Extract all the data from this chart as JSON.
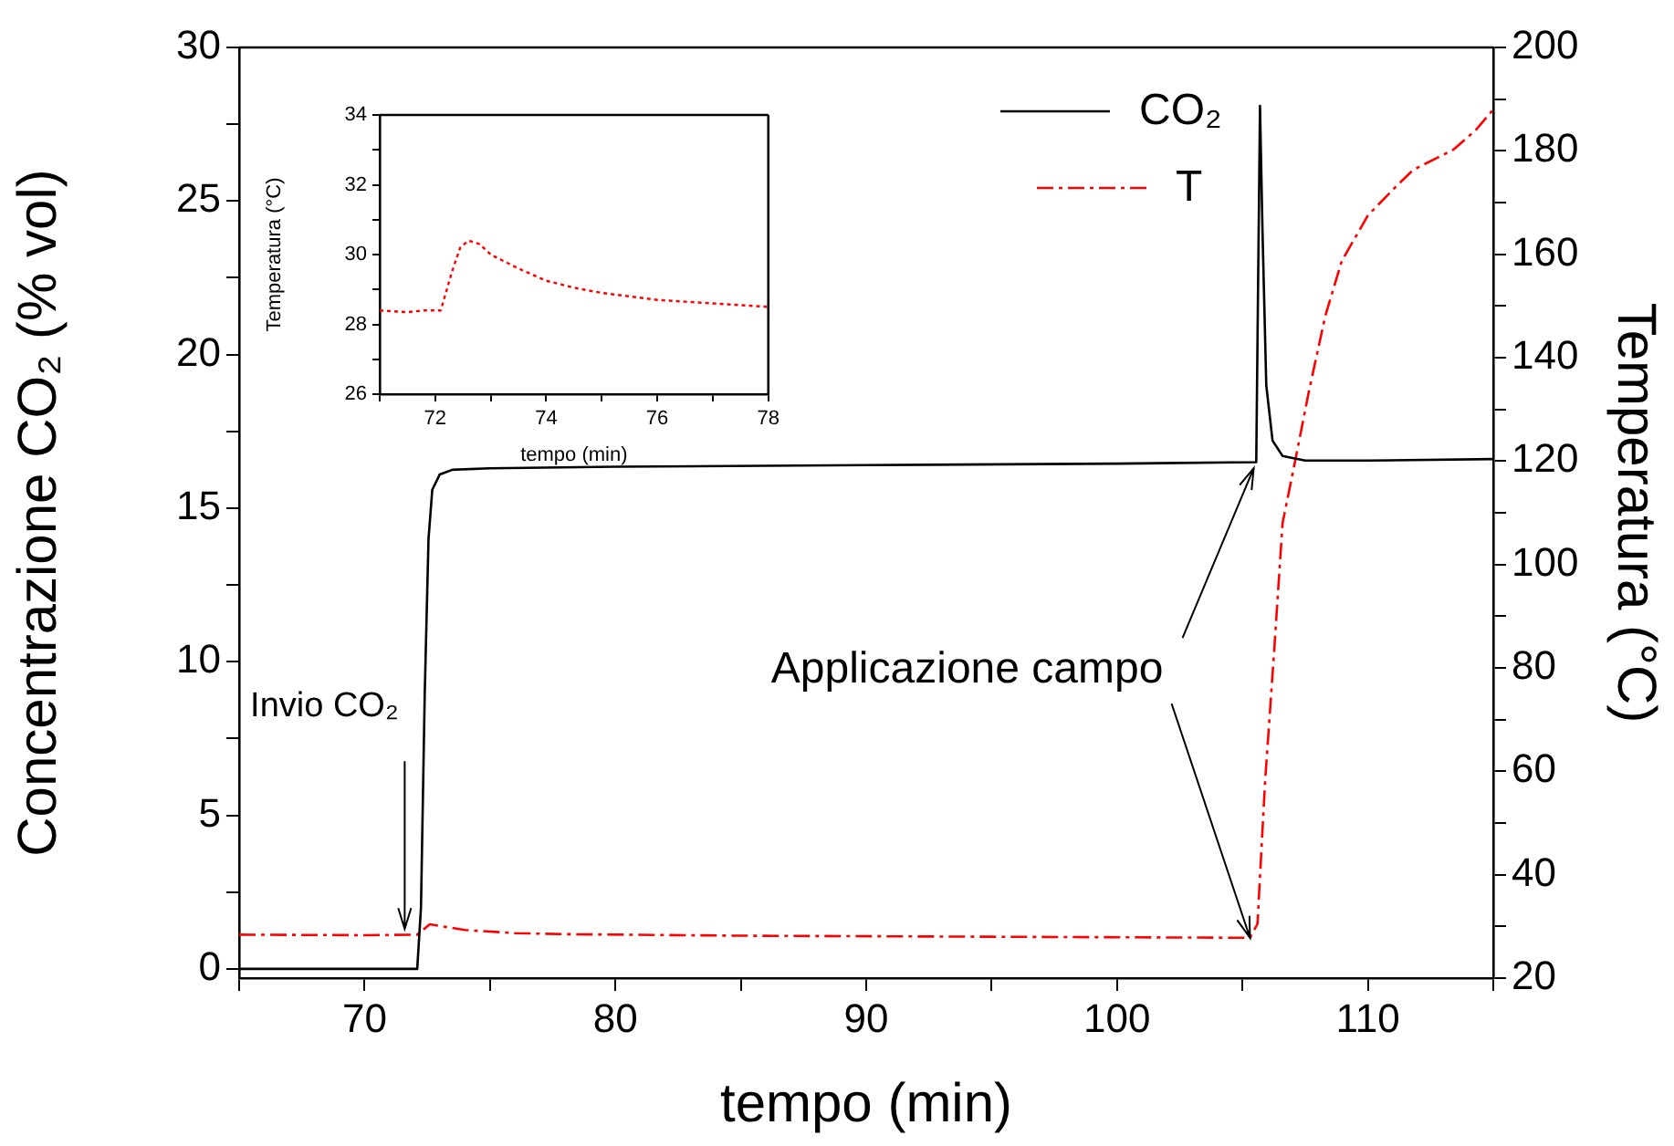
{
  "chart_data": [
    {
      "type": "line",
      "xlabel": "tempo (min)",
      "ylabel": "Concentrazione CO₂ (% vol)",
      "y2label": "Temperatura (°C)",
      "xlim": [
        65,
        115
      ],
      "xticks": [
        {
          "value": 65,
          "label": null
        },
        70,
        {
          "value": 75,
          "label": null
        },
        80,
        {
          "value": 85,
          "label": null
        },
        90,
        {
          "value": 95,
          "label": null
        },
        100,
        {
          "value": 105,
          "label": null
        },
        110,
        {
          "value": 115,
          "label": null
        }
      ],
      "ylim": [
        -0.3,
        30
      ],
      "yticks": [
        0,
        {
          "value": 2.5,
          "label": null
        },
        5,
        {
          "value": 7.5,
          "label": null
        },
        10,
        {
          "value": 12.5,
          "label": null
        },
        15,
        {
          "value": 17.5,
          "label": null
        },
        20,
        {
          "value": 22.5,
          "label": null
        },
        25,
        {
          "value": 27.5,
          "label": null
        },
        30
      ],
      "y2lim": [
        20,
        200
      ],
      "y2ticks": [
        20,
        {
          "value": 30,
          "label": null
        },
        40,
        {
          "value": 50,
          "label": null
        },
        60,
        {
          "value": 70,
          "label": null
        },
        80,
        {
          "value": 90,
          "label": null
        },
        100,
        {
          "value": 110,
          "label": null
        },
        120,
        {
          "value": 130,
          "label": null
        },
        140,
        {
          "value": 150,
          "label": null
        },
        160,
        {
          "value": 170,
          "label": null
        },
        180,
        {
          "value": 190,
          "label": null
        },
        200
      ],
      "legend": "top right",
      "marker": "none",
      "series": [
        {
          "name": "CO₂",
          "color": "#000000",
          "line_style": "solid",
          "x": [
            65,
            72.1,
            72.25,
            72.4,
            72.55,
            72.7,
            73,
            73.5,
            75,
            80,
            90,
            100,
            105.55,
            105.62,
            105.7,
            105.8,
            105.95,
            106.2,
            106.6,
            107.5,
            110,
            115
          ],
          "values": [
            0,
            0,
            2,
            9,
            14,
            15.6,
            16.1,
            16.25,
            16.3,
            16.35,
            16.4,
            16.45,
            16.5,
            22,
            28.1,
            24,
            19,
            17.2,
            16.7,
            16.55,
            16.55,
            16.6
          ]
        },
        {
          "name": "T",
          "color": "#ff0000",
          "axis": "y2",
          "line_style": "dashed",
          "x": [
            65,
            70,
            72.1,
            72.6,
            74,
            76,
            78,
            85,
            95,
            105.3,
            105.6,
            105.9,
            106.26,
            106.6,
            107.1,
            107.65,
            108.3,
            108.96,
            110,
            111,
            111.8,
            113.4,
            114.3,
            115
          ],
          "values": [
            28.4,
            28.3,
            28.4,
            30.4,
            29.3,
            28.7,
            28.5,
            28.2,
            28,
            27.8,
            30.5,
            57.8,
            83,
            108,
            120,
            133.5,
            148,
            158.7,
            167.5,
            172.5,
            176.3,
            180.2,
            184,
            188
          ]
        }
      ],
      "annotations": [
        {
          "text": "Invio CO₂",
          "x": 71.6,
          "y": 1.3
        },
        {
          "text": "Applicazione campo",
          "x": 105.45,
          "y": 16.3
        }
      ]
    },
    {
      "type": "line",
      "xlabel": "tempo (min)",
      "ylabel": "Temperatura (°C)",
      "xlim": [
        71,
        78
      ],
      "xticks": [
        {
          "value": 71,
          "label": null
        },
        72,
        {
          "value": 73,
          "label": null
        },
        74,
        {
          "value": 75,
          "label": null
        },
        76,
        {
          "value": 77,
          "label": null
        },
        78
      ],
      "ylim": [
        26,
        34
      ],
      "yticks": [
        26,
        {
          "value": 27,
          "label": null
        },
        28,
        {
          "value": 29,
          "label": null
        },
        30,
        {
          "value": 31,
          "label": null
        },
        32,
        {
          "value": 33,
          "label": null
        },
        34
      ],
      "marker": "none",
      "series": [
        {
          "color": "#ff0000",
          "line_style": "dotted",
          "x": [
            71,
            71.5,
            71.8,
            72.1,
            72.3,
            72.45,
            72.6,
            72.8,
            73,
            73.5,
            74,
            74.5,
            75,
            75.5,
            76,
            76.5,
            77,
            77.5,
            78
          ],
          "values": [
            28.4,
            28.35,
            28.4,
            28.4,
            29.5,
            30.2,
            30.4,
            30.3,
            30,
            29.6,
            29.25,
            29.05,
            28.9,
            28.8,
            28.7,
            28.65,
            28.6,
            28.55,
            28.5
          ]
        }
      ]
    }
  ]
}
